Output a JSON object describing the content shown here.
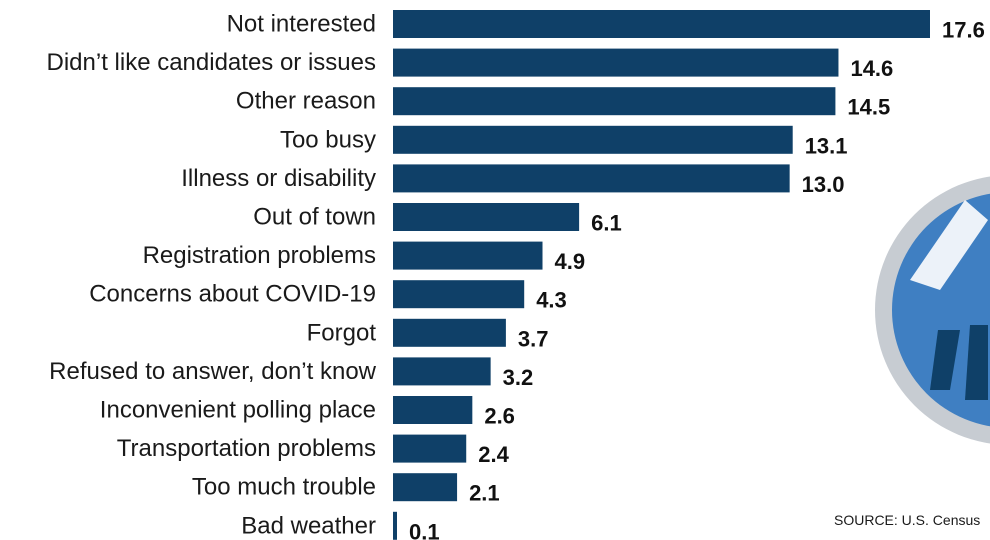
{
  "chart_data": {
    "type": "bar",
    "orientation": "horizontal",
    "categories": [
      "Not interested",
      "Didn’t like candidates or issues",
      "Other reason",
      "Too busy",
      "Illness or disability",
      "Out of town",
      "Registration problems",
      "Concerns about COVID-19",
      "Forgot",
      "Refused to answer, don’t know",
      "Inconvenient polling place",
      "Transportation problems",
      "Too much trouble",
      "Bad weather"
    ],
    "values": [
      17.6,
      14.6,
      14.5,
      13.1,
      13.0,
      6.1,
      4.9,
      4.3,
      3.7,
      3.2,
      2.6,
      2.4,
      2.1,
      0.1
    ],
    "value_labels": [
      "17.6",
      "14.6",
      "14.5",
      "13.1",
      "13.0",
      "6.1",
      "4.9",
      "4.3",
      "3.7",
      "3.2",
      "2.6",
      "2.4",
      "2.1",
      "0.1"
    ],
    "xlim": [
      0,
      17.6
    ],
    "bar_color": "#0f4068",
    "grid": false,
    "legend": "none"
  },
  "source": "SOURCE: U.S. Census",
  "colors": {
    "logo_fill": "#3f7fc2",
    "logo_ring": "#c7ccd2"
  }
}
